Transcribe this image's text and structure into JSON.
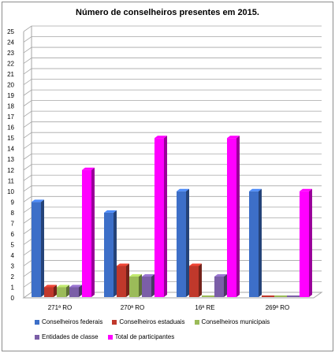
{
  "chart_data": {
    "type": "bar",
    "title": "Número de conselheiros  presentes  em 2015.",
    "categories": [
      "271ª RO",
      "270ª RO",
      "16ª RE",
      "269ª RO"
    ],
    "series": [
      {
        "name": "Conselheiros federais",
        "values": [
          9,
          8,
          10,
          10
        ],
        "color": "#3d6fc8"
      },
      {
        "name": "Conselheiros estaduais",
        "values": [
          1,
          3,
          3,
          0
        ],
        "color": "#c0382b"
      },
      {
        "name": "Conselheiros municipais",
        "values": [
          1,
          2,
          0,
          0
        ],
        "color": "#9bbb59"
      },
      {
        "name": "Entidades de classe",
        "values": [
          1,
          2,
          2,
          0
        ],
        "color": "#7b5ea7"
      },
      {
        "name": "Total de participantes",
        "values": [
          12,
          15,
          15,
          10
        ],
        "color": "#ff00ff"
      }
    ],
    "ylim": [
      0,
      25
    ],
    "yticks": [
      0,
      1,
      2,
      3,
      4,
      5,
      6,
      7,
      8,
      9,
      10,
      11,
      12,
      13,
      14,
      15,
      16,
      17,
      18,
      19,
      20,
      21,
      22,
      23,
      24,
      25
    ],
    "grid": true,
    "legend_position": "bottom"
  }
}
